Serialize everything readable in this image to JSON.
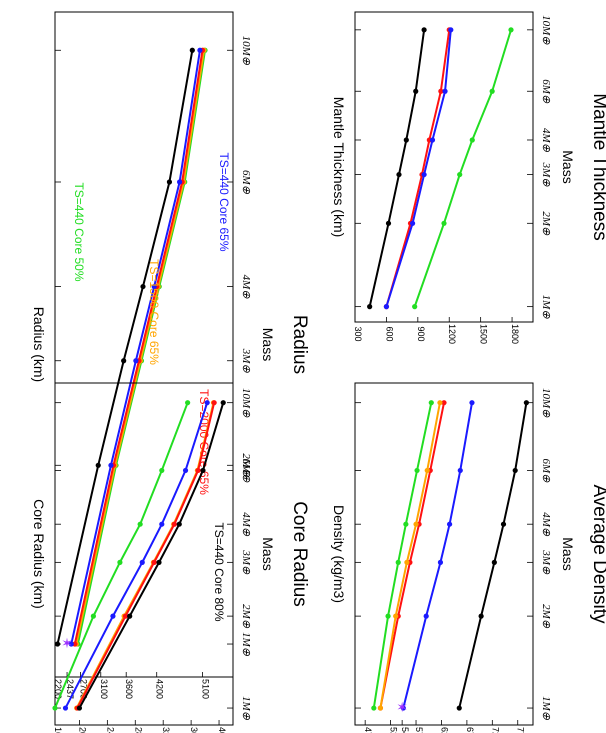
{
  "colors": {
    "green": "#22dd22",
    "orange": "#ffa500",
    "red": "#ff1111",
    "blue": "#1a1aff",
    "black": "#000000",
    "purple": "#9b30ff"
  },
  "chart_data": [
    {
      "id": "radius",
      "type": "line",
      "title": "Radius",
      "xlabel": "Mass",
      "ylabel": "Radius (km)",
      "x_ticks": [
        "1M⊕",
        "2M⊕",
        "3M⊕",
        "4M⊕",
        "6M⊕",
        "10M⊕"
      ],
      "x_tick_values": [
        1,
        2,
        3,
        4,
        6,
        10
      ],
      "y_ticks": [
        "2200",
        "2437",
        "2700",
        "3100",
        "3600",
        "4200",
        "5100"
      ],
      "y_tick_values": [
        2200,
        2437,
        2700,
        3100,
        3600,
        4200,
        5100
      ],
      "ylim": [
        2200,
        5700
      ],
      "annotations": [
        {
          "text": "TS=440 Core 50%",
          "color": "#22dd22"
        },
        {
          "text": "TS=1500 Core 65%",
          "color": "#ffa500"
        },
        {
          "text": "TS=2000 Core 65%",
          "color": "#ff1111"
        },
        {
          "text": "TS=440 Core 65%",
          "color": "#1a1aff"
        },
        {
          "text": "TS=440 Core 80%",
          "color": "#000000"
        }
      ],
      "series": [
        {
          "color": "#22dd22",
          "x": [
            1,
            2,
            3,
            4,
            6,
            10
          ],
          "y": [
            2650,
            3400,
            3900,
            4250,
            4750,
            5150
          ]
        },
        {
          "color": "#ffa500",
          "x": [
            1,
            2,
            3,
            4,
            6,
            10
          ],
          "y": [
            2620,
            3380,
            3880,
            4230,
            4730,
            5130
          ]
        },
        {
          "color": "#ff1111",
          "x": [
            1,
            2,
            3,
            4,
            6,
            10
          ],
          "y": [
            2590,
            3350,
            3850,
            4200,
            4700,
            5100
          ]
        },
        {
          "color": "#1a1aff",
          "x": [
            1,
            2,
            3,
            4,
            6,
            10
          ],
          "y": [
            2520,
            3300,
            3790,
            4150,
            4650,
            5050
          ]
        },
        {
          "color": "#000000",
          "x": [
            1,
            2,
            3,
            4,
            6,
            10
          ],
          "y": [
            2250,
            3050,
            3550,
            3930,
            4450,
            4900
          ]
        }
      ],
      "markers": [
        {
          "x": 1,
          "y": 2437,
          "color": "#9b30ff",
          "symbol": "star"
        }
      ]
    },
    {
      "id": "mantle",
      "type": "line",
      "title": "Mantle Thickness",
      "xlabel": "Mass",
      "ylabel": "Mantle Thickness (km)",
      "x_ticks": [
        "1M⊕",
        "2M⊕",
        "3M⊕",
        "4M⊕",
        "6M⊕",
        "10M⊕"
      ],
      "x_tick_values": [
        1,
        2,
        3,
        4,
        6,
        10
      ],
      "y_ticks": [
        "300",
        "600",
        "900",
        "1200",
        "1500",
        "1800"
      ],
      "y_tick_values": [
        300,
        600,
        900,
        1200,
        1500,
        1800
      ],
      "ylim": [
        300,
        2000
      ],
      "series": [
        {
          "color": "#22dd22",
          "x": [
            1,
            2,
            3,
            4,
            6,
            10
          ],
          "y": [
            870,
            1150,
            1300,
            1420,
            1610,
            1790
          ]
        },
        {
          "color": "#ff1111",
          "x": [
            1,
            2,
            3,
            4,
            6,
            10
          ],
          "y": [
            600,
            830,
            940,
            1010,
            1120,
            1200
          ]
        },
        {
          "color": "#1a1aff",
          "x": [
            1,
            2,
            3,
            4,
            6,
            10
          ],
          "y": [
            600,
            850,
            960,
            1040,
            1160,
            1215
          ]
        },
        {
          "color": "#000000",
          "x": [
            1,
            2,
            3,
            4,
            6,
            10
          ],
          "y": [
            440,
            620,
            720,
            790,
            880,
            960
          ]
        }
      ]
    },
    {
      "id": "core",
      "type": "line",
      "title": "Core Radius",
      "xlabel": "Mass",
      "ylabel": "Core Radius (km)",
      "x_ticks": [
        "1M⊕",
        "2M⊕",
        "3M⊕",
        "4M⊕",
        "6M⊕",
        "10M⊕"
      ],
      "x_tick_values": [
        1,
        2,
        3,
        4,
        6,
        10
      ],
      "y_ticks": [
        "1650",
        "2000",
        "2400",
        "2800",
        "3200",
        "3600",
        "4000"
      ],
      "y_tick_values": [
        1650,
        2000,
        2400,
        2800,
        3200,
        3600,
        4000
      ],
      "ylim": [
        1650,
        4200
      ],
      "series": [
        {
          "color": "#22dd22",
          "x": [
            1,
            2,
            3,
            4,
            6,
            10
          ],
          "y": [
            1650,
            2200,
            2580,
            2870,
            3180,
            3550
          ]
        },
        {
          "color": "#1a1aff",
          "x": [
            1,
            2,
            3,
            4,
            6,
            10
          ],
          "y": [
            1800,
            2480,
            2900,
            3180,
            3520,
            3830
          ]
        },
        {
          "color": "#ffa500",
          "x": [
            1,
            2,
            3,
            4,
            6,
            10
          ],
          "y": [
            1960,
            2640,
            3060,
            3350,
            3690,
            3920
          ]
        },
        {
          "color": "#ff1111",
          "x": [
            1,
            2,
            3,
            4,
            6,
            10
          ],
          "y": [
            1970,
            2660,
            3070,
            3360,
            3700,
            3930
          ]
        },
        {
          "color": "#000000",
          "x": [
            1,
            2,
            3,
            4,
            6,
            10
          ],
          "y": [
            2000,
            2720,
            3140,
            3430,
            3770,
            4060
          ]
        }
      ]
    },
    {
      "id": "density",
      "type": "line",
      "title": "Average Density",
      "xlabel": "Mass",
      "ylabel": "Density (kg/m3)",
      "x_ticks": [
        "1M⊕",
        "2M⊕",
        "3M⊕",
        "4M⊕",
        "6M⊕",
        "10M⊕"
      ],
      "x_tick_values": [
        1,
        2,
        3,
        4,
        6,
        10
      ],
      "y_ticks": [
        "4700",
        "5200",
        "5427",
        "5700",
        "6200",
        "6700",
        "7200",
        "7700"
      ],
      "y_tick_values": [
        4700,
        5200,
        5427,
        5700,
        6200,
        6700,
        7200,
        7700
      ],
      "ylim": [
        4500,
        8000
      ],
      "series": [
        {
          "color": "#000000",
          "x": [
            1,
            2,
            3,
            4,
            6,
            10
          ],
          "y": [
            6550,
            6980,
            7240,
            7420,
            7650,
            7870
          ]
        },
        {
          "color": "#1a1aff",
          "x": [
            1,
            2,
            3,
            4,
            6,
            10
          ],
          "y": [
            5450,
            5900,
            6180,
            6360,
            6570,
            6800
          ]
        },
        {
          "color": "#ff1111",
          "x": [
            1,
            2,
            3,
            4,
            6,
            10
          ],
          "y": [
            5000,
            5350,
            5580,
            5760,
            5980,
            6250
          ]
        },
        {
          "color": "#ffa500",
          "x": [
            1,
            2,
            3,
            4,
            6,
            10
          ],
          "y": [
            5000,
            5300,
            5520,
            5700,
            5920,
            6170
          ]
        },
        {
          "color": "#22dd22",
          "x": [
            1,
            2,
            3,
            4,
            6,
            10
          ],
          "y": [
            4870,
            5150,
            5350,
            5500,
            5720,
            6000
          ]
        }
      ],
      "markers": [
        {
          "x": 1,
          "y": 5427,
          "color": "#9b30ff",
          "symbol": "star"
        }
      ]
    }
  ]
}
